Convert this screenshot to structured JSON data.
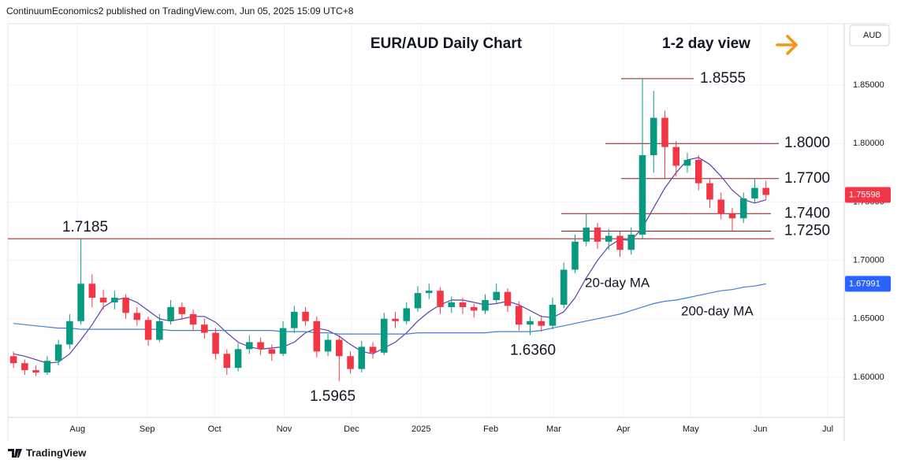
{
  "header": {
    "publisher": "ContinuumEconomics2 published on TradingView.com, Jun 05, 2025 15:09 UTC+8"
  },
  "footer": {
    "brand": "TradingView"
  },
  "chart_data": {
    "type": "candlestick",
    "title": "EUR/AUD Daily Chart",
    "subtitle": "1-2 day view",
    "currency": "AUD",
    "up_color": "#089981",
    "down_color": "#f23645",
    "grid": true,
    "open": [
      1.618,
      1.612,
      1.606,
      1.604,
      1.614,
      1.628,
      1.648,
      1.68,
      1.668,
      1.664,
      1.668,
      1.655,
      1.649,
      1.632,
      1.648,
      1.66,
      1.654,
      1.645,
      1.638,
      1.62,
      1.608,
      1.624,
      1.63,
      1.624,
      1.62,
      1.642,
      1.656,
      1.648,
      1.622,
      1.632,
      1.618,
      1.607,
      1.626,
      1.621,
      1.65,
      1.648,
      1.659,
      1.672,
      1.674,
      1.66,
      1.664,
      1.66,
      1.657,
      1.666,
      1.673,
      1.661,
      1.645,
      1.648,
      1.644,
      1.662,
      1.692,
      1.716,
      1.728,
      1.716,
      1.721,
      1.709,
      1.722,
      1.79,
      1.822,
      1.797,
      1.781,
      1.786,
      1.766,
      1.752,
      1.74,
      1.736,
      1.753,
      1.762
    ],
    "high": [
      1.622,
      1.615,
      1.61,
      1.618,
      1.632,
      1.654,
      1.7185,
      1.688,
      1.675,
      1.674,
      1.671,
      1.66,
      1.652,
      1.654,
      1.666,
      1.664,
      1.658,
      1.65,
      1.642,
      1.624,
      1.629,
      1.636,
      1.634,
      1.628,
      1.648,
      1.661,
      1.66,
      1.652,
      1.637,
      1.636,
      1.622,
      1.631,
      1.63,
      1.655,
      1.656,
      1.664,
      1.678,
      1.68,
      1.677,
      1.669,
      1.668,
      1.663,
      1.671,
      1.68,
      1.676,
      1.665,
      1.652,
      1.653,
      1.668,
      1.698,
      1.722,
      1.74,
      1.732,
      1.727,
      1.725,
      1.728,
      1.8555,
      1.845,
      1.828,
      1.802,
      1.792,
      1.79,
      1.77,
      1.758,
      1.745,
      1.758,
      1.77,
      1.768
    ],
    "low": [
      1.608,
      1.602,
      1.601,
      1.602,
      1.61,
      1.624,
      1.645,
      1.66,
      1.658,
      1.658,
      1.65,
      1.644,
      1.627,
      1.63,
      1.645,
      1.649,
      1.64,
      1.633,
      1.615,
      1.602,
      1.605,
      1.62,
      1.619,
      1.614,
      1.618,
      1.638,
      1.644,
      1.617,
      1.618,
      1.5965,
      1.603,
      1.604,
      1.616,
      1.619,
      1.642,
      1.645,
      1.656,
      1.667,
      1.654,
      1.655,
      1.654,
      1.651,
      1.654,
      1.663,
      1.656,
      1.64,
      1.636,
      1.639,
      1.641,
      1.659,
      1.689,
      1.712,
      1.71,
      1.709,
      1.703,
      1.705,
      1.718,
      1.775,
      1.77,
      1.772,
      1.775,
      1.76,
      1.745,
      1.735,
      1.725,
      1.732,
      1.749,
      1.752
    ],
    "close": [
      1.612,
      1.606,
      1.604,
      1.614,
      1.628,
      1.648,
      1.68,
      1.668,
      1.664,
      1.668,
      1.655,
      1.649,
      1.632,
      1.648,
      1.66,
      1.654,
      1.645,
      1.638,
      1.62,
      1.608,
      1.624,
      1.63,
      1.624,
      1.62,
      1.642,
      1.656,
      1.648,
      1.622,
      1.632,
      1.618,
      1.607,
      1.626,
      1.621,
      1.65,
      1.648,
      1.659,
      1.672,
      1.674,
      1.66,
      1.664,
      1.66,
      1.657,
      1.666,
      1.673,
      1.661,
      1.645,
      1.648,
      1.644,
      1.662,
      1.692,
      1.716,
      1.728,
      1.716,
      1.721,
      1.709,
      1.722,
      1.79,
      1.822,
      1.797,
      1.781,
      1.786,
      1.766,
      1.752,
      1.74,
      1.736,
      1.753,
      1.762,
      1.756
    ],
    "series": [
      {
        "name": "20-day MA",
        "color": "#5b3fa8",
        "values": [
          1.62,
          1.618,
          1.615,
          1.612,
          1.613,
          1.62,
          1.632,
          1.645,
          1.66,
          1.666,
          1.668,
          1.664,
          1.657,
          1.65,
          1.648,
          1.65,
          1.652,
          1.652,
          1.647,
          1.638,
          1.63,
          1.626,
          1.624,
          1.625,
          1.626,
          1.63,
          1.638,
          1.642,
          1.64,
          1.635,
          1.628,
          1.622,
          1.62,
          1.625,
          1.63,
          1.638,
          1.648,
          1.656,
          1.662,
          1.666,
          1.666,
          1.664,
          1.662,
          1.663,
          1.665,
          1.662,
          1.657,
          1.652,
          1.651,
          1.656,
          1.668,
          1.685,
          1.7,
          1.712,
          1.718,
          1.717,
          1.728,
          1.745,
          1.762,
          1.775,
          1.786,
          1.788,
          1.782,
          1.772,
          1.76,
          1.752,
          1.749,
          1.7518
        ]
      },
      {
        "name": "200-day MA",
        "color": "#3d7fd9",
        "values": [
          1.646,
          1.645,
          1.644,
          1.643,
          1.642,
          1.642,
          1.641,
          1.641,
          1.641,
          1.641,
          1.641,
          1.641,
          1.641,
          1.641,
          1.64,
          1.64,
          1.64,
          1.64,
          1.64,
          1.64,
          1.64,
          1.64,
          1.64,
          1.64,
          1.639,
          1.639,
          1.639,
          1.638,
          1.638,
          1.637,
          1.637,
          1.637,
          1.637,
          1.637,
          1.637,
          1.637,
          1.638,
          1.638,
          1.638,
          1.638,
          1.638,
          1.638,
          1.638,
          1.639,
          1.639,
          1.639,
          1.639,
          1.64,
          1.642,
          1.644,
          1.646,
          1.648,
          1.65,
          1.652,
          1.654,
          1.657,
          1.66,
          1.663,
          1.665,
          1.666,
          1.668,
          1.67,
          1.672,
          1.674,
          1.675,
          1.677,
          1.678,
          1.6799
        ]
      }
    ],
    "xlim": [
      0,
      74.4
    ],
    "xticks": [
      {
        "value": 6.2,
        "label": "Aug"
      },
      {
        "value": 12.4,
        "label": "Sep"
      },
      {
        "value": 18.4,
        "label": "Oct"
      },
      {
        "value": 24.6,
        "label": "Nov"
      },
      {
        "value": 30.6,
        "label": "Dec"
      },
      {
        "value": 36.8,
        "label": "2025"
      },
      {
        "value": 43,
        "label": "Feb"
      },
      {
        "value": 48.6,
        "label": "Mar"
      },
      {
        "value": 54.8,
        "label": "Apr"
      },
      {
        "value": 60.8,
        "label": "May"
      },
      {
        "value": 67,
        "label": "Jun"
      },
      {
        "value": 73,
        "label": "Jul"
      }
    ],
    "ylim": [
      1.5656,
      1.9026
    ],
    "yticks": [
      {
        "value": 1.6,
        "label": "1.60000"
      },
      {
        "value": 1.65,
        "label": "1.65000"
      },
      {
        "value": 1.7,
        "label": "1.70000"
      },
      {
        "value": 1.75,
        "label": "1.75000"
      },
      {
        "value": 1.8,
        "label": "1.80000"
      },
      {
        "value": 1.85,
        "label": "1.85000"
      }
    ],
    "level_color": "#8b1a1a",
    "label_color": "#e5393f",
    "levels": [
      1.8555,
      {
        "value": 1.8,
        "label": "1.8000"
      },
      {
        "value": 1.77,
        "label": "1.7700"
      },
      {
        "value": 1.74,
        "label": "1.7400"
      },
      {
        "value": 1.725,
        "label": "1.7250"
      },
      1.7185
    ],
    "lows": [
      1.5965,
      {
        "value": 1.636,
        "label": "1.6360"
      }
    ],
    "badges": [
      {
        "value": 1.75598,
        "color": "#f23645"
      },
      {
        "value": 1.67991,
        "color": "#2962ff"
      }
    ]
  }
}
